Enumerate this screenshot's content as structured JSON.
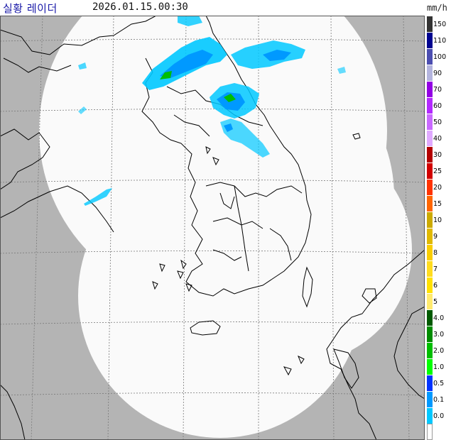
{
  "header": {
    "title": "실황 레이더",
    "timestamp": "2026.01.15.00:30",
    "unit": "mm/h"
  },
  "legend": {
    "items": [
      {
        "label": "150",
        "color": "#333333"
      },
      {
        "label": "110",
        "color": "#000390"
      },
      {
        "label": "100",
        "color": "#4c4eb1"
      },
      {
        "label": "90",
        "color": "#b3b4de"
      },
      {
        "label": "70",
        "color": "#9300e4"
      },
      {
        "label": "60",
        "color": "#b329ff"
      },
      {
        "label": "50",
        "color": "#c969ff"
      },
      {
        "label": "40",
        "color": "#e0a9ff"
      },
      {
        "label": "30",
        "color": "#b40000"
      },
      {
        "label": "25",
        "color": "#d20000"
      },
      {
        "label": "20",
        "color": "#ff3300"
      },
      {
        "label": "15",
        "color": "#ff6600"
      },
      {
        "label": "10",
        "color": "#ccaa00"
      },
      {
        "label": "9",
        "color": "#e0b900"
      },
      {
        "label": "8",
        "color": "#f9cd00"
      },
      {
        "label": "7",
        "color": "#ffdc1f"
      },
      {
        "label": "6",
        "color": "#ffe100"
      },
      {
        "label": "5",
        "color": "#ffea6e"
      },
      {
        "label": "4.0",
        "color": "#005a00"
      },
      {
        "label": "3.0",
        "color": "#008c00"
      },
      {
        "label": "2.0",
        "color": "#00be00"
      },
      {
        "label": "1.0",
        "color": "#00ff00"
      },
      {
        "label": "0.5",
        "color": "#0033ff"
      },
      {
        "label": "0.1",
        "color": "#0099ff"
      },
      {
        "label": "0.0",
        "color": "#00c8ff"
      },
      {
        "label": "",
        "color": "#ffffff"
      }
    ]
  },
  "colors": {
    "outside_coverage": "#b4b4b4",
    "coverage": "#fafafa",
    "coastline": "#000000",
    "grid": "#7a7a7a"
  }
}
